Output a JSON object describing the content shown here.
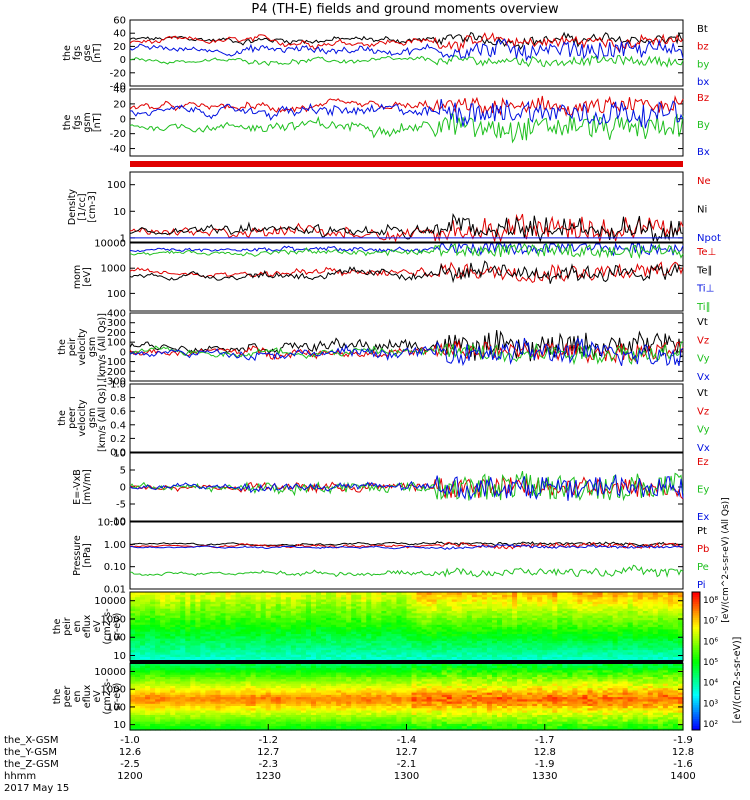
{
  "title": "P4 (TH-E) fields and ground moments overview",
  "colors": {
    "black": "#000000",
    "red": "#e00000",
    "green": "#20c020",
    "blue": "#0010e0"
  },
  "chart_data": [
    {
      "id": "fgs",
      "type": "line",
      "ylabel_lines": [
        "the",
        "fgs",
        "gse",
        "[nT]"
      ],
      "ylim": [
        -40,
        60
      ],
      "yticks": [
        "60",
        "40",
        "20",
        "0",
        "-20",
        "-40"
      ],
      "series": [
        {
          "name": "Bt",
          "color": "black",
          "level": 30,
          "noise": 3,
          "burst": 6
        },
        {
          "name": "bz",
          "color": "red",
          "level": 27,
          "noise": 3,
          "burst": 8
        },
        {
          "name": "by",
          "color": "green",
          "level": -2,
          "noise": 2,
          "burst": 6
        },
        {
          "name": "bx",
          "color": "blue",
          "level": 15,
          "noise": 3,
          "burst": 12
        }
      ]
    },
    {
      "id": "fgsgsm",
      "type": "line",
      "ylabel_lines": [
        "the",
        "fgs",
        "gsm",
        "[nT]"
      ],
      "ylim": [
        -50,
        40
      ],
      "yticks": [
        "40",
        "20",
        "0",
        "-20",
        "-40"
      ],
      "series": [
        {
          "name": "Bz",
          "color": "red",
          "level": 15,
          "noise": 3,
          "burst": 10
        },
        {
          "name": "By",
          "color": "green",
          "level": -10,
          "noise": 3,
          "burst": 15
        },
        {
          "name": "Bx",
          "color": "blue",
          "level": 10,
          "noise": 3,
          "burst": 15
        }
      ]
    },
    {
      "id": "density",
      "type": "line",
      "scale": "log",
      "ylabel_lines": [
        "Density",
        "[1/cc]",
        "[cm-3]"
      ],
      "ylim": [
        0.7,
        300
      ],
      "yticks": [
        "100",
        "10",
        "1"
      ],
      "series": [
        {
          "name": "Ne",
          "color": "red",
          "level": 1.5,
          "noise": 0.2,
          "burst": 8
        },
        {
          "name": "Ni",
          "color": "black",
          "level": 1.6,
          "noise": 0.2,
          "burst": 9
        },
        {
          "name": "Npot",
          "color": "blue",
          "level": 1.0,
          "noise": 0,
          "burst": 0
        }
      ]
    },
    {
      "id": "temperature",
      "type": "line",
      "scale": "log",
      "ylabel_lines": [
        "mom",
        "[eV]"
      ],
      "ylim": [
        20,
        10000
      ],
      "yticks": [
        "10000",
        "1000",
        "100"
      ],
      "series": [
        {
          "name": "Te⊥",
          "color": "red",
          "level": 600,
          "noise": 0.15,
          "burst": 0.6
        },
        {
          "name": "Te∥",
          "color": "black",
          "level": 500,
          "noise": 0.15,
          "burst": 0.6
        },
        {
          "name": "Ti⊥",
          "color": "blue",
          "level": 5000,
          "noise": 0.08,
          "burst": 0.5
        },
        {
          "name": "Ti∥",
          "color": "green",
          "level": 4000,
          "noise": 0.08,
          "burst": 0.5
        }
      ]
    },
    {
      "id": "peir_velocity",
      "type": "line",
      "ylabel_lines": [
        "the",
        "peir",
        "velocity",
        "gsm",
        "[km/s (All Qs)]"
      ],
      "ylim": [
        -300,
        400
      ],
      "yticks": [
        "400",
        "300",
        "200",
        "100",
        "0",
        "-100",
        "-200",
        "-300"
      ],
      "series": [
        {
          "name": "Vt",
          "color": "black",
          "level": 60,
          "noise": 20,
          "burst": 120
        },
        {
          "name": "Vz",
          "color": "red",
          "level": 0,
          "noise": 20,
          "burst": 90
        },
        {
          "name": "Vy",
          "color": "green",
          "level": 0,
          "noise": 20,
          "burst": 90
        },
        {
          "name": "Vx",
          "color": "blue",
          "level": -10,
          "noise": 20,
          "burst": 110
        }
      ]
    },
    {
      "id": "peer_velocity",
      "type": "line",
      "ylabel_lines": [
        "the",
        "peer",
        "velocity",
        "gsm",
        "[km/s (All Qs)]"
      ],
      "ylim": [
        0.0,
        1.0
      ],
      "yticks": [
        "1.0",
        "0.8",
        "0.6",
        "0.4",
        "0.2",
        "0.0"
      ],
      "series": [
        {
          "name": "Vt",
          "color": "black",
          "empty": true
        },
        {
          "name": "Vz",
          "color": "red",
          "empty": true
        },
        {
          "name": "Vy",
          "color": "green",
          "empty": true
        },
        {
          "name": "Vx",
          "color": "blue",
          "empty": true
        }
      ]
    },
    {
      "id": "efield",
      "type": "line",
      "ylabel_lines": [
        "E=-VxB",
        "[mV/m]"
      ],
      "ylim": [
        -10,
        10
      ],
      "yticks": [
        "10",
        "5",
        "0",
        "-5",
        "-10"
      ],
      "series": [
        {
          "name": "Ez",
          "color": "red",
          "level": 0,
          "noise": 0.4,
          "burst": 3
        },
        {
          "name": "Ey",
          "color": "green",
          "level": 0,
          "noise": 0.4,
          "burst": 4
        },
        {
          "name": "Ex",
          "color": "blue",
          "level": 0,
          "noise": 0.4,
          "burst": 3
        }
      ]
    },
    {
      "id": "pressure",
      "type": "line",
      "scale": "log",
      "ylabel_lines": [
        "Pressure",
        "[nPa]"
      ],
      "ylim": [
        0.01,
        10
      ],
      "yticks": [
        "10.00",
        "1.00",
        "0.10",
        "0.01"
      ],
      "series": [
        {
          "name": "Pt",
          "color": "black",
          "level": 1.0,
          "noise": 0.06,
          "burst": 0.1
        },
        {
          "name": "Pb",
          "color": "red",
          "level": 0.8,
          "noise": 0.06,
          "burst": 0.2
        },
        {
          "name": "Pe",
          "color": "green",
          "level": 0.05,
          "noise": 0.1,
          "burst": 0.3
        },
        {
          "name": "Pi",
          "color": "blue",
          "level": 0.75,
          "noise": 0.05,
          "burst": 0.1
        }
      ]
    },
    {
      "id": "peir_spec",
      "type": "heatmap",
      "ylabel_lines": [
        "the",
        "peir",
        "en",
        "eflux",
        "eV",
        "(cm2-s-",
        "sr-eV)"
      ],
      "ylim": [
        5,
        30000
      ],
      "yticks": [
        "10000",
        "1000",
        "100",
        "10"
      ]
    },
    {
      "id": "peer_spec",
      "type": "heatmap",
      "ylabel_lines": [
        "the",
        "peer",
        "en",
        "eflux",
        "eV",
        "(cm2-s-",
        "sr-eV)"
      ],
      "ylim": [
        5,
        30000
      ],
      "yticks": [
        "10000",
        "1000",
        "100",
        "10"
      ]
    }
  ],
  "colorbar": {
    "ticks": [
      "10⁸",
      "10⁷",
      "10⁶",
      "10⁵",
      "10⁴",
      "10³",
      "10²"
    ],
    "label": "[eV/(cm2-s-sr-eV)]",
    "label2": "[eV/(cm^2-s-sr-eV) (All Qs)]"
  },
  "xaxis": {
    "ticks": [
      {
        "x": "-1.0",
        "y": "12.6",
        "z": "-2.5",
        "t": "1200"
      },
      {
        "x": "-1.2",
        "y": "12.7",
        "z": "-2.3",
        "t": "1230"
      },
      {
        "x": "-1.4",
        "y": "12.7",
        "z": "-2.1",
        "t": "1300"
      },
      {
        "x": "-1.7",
        "y": "12.8",
        "z": "-1.9",
        "t": "1330"
      },
      {
        "x": "-1.9",
        "y": "12.8",
        "z": "-1.6",
        "t": "1400"
      }
    ],
    "row_labels": [
      "the_X-GSM",
      "the_Y-GSM",
      "the_Z-GSM",
      "hhmm"
    ],
    "date": "2017 May 15"
  }
}
